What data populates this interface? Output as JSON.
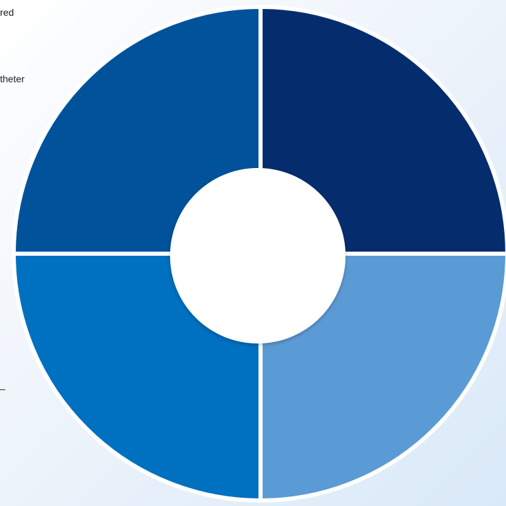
{
  "left_text_fragments": [
    "red",
    "theter",
    "–"
  ],
  "quadrants": [
    {
      "label": "",
      "color": "#052D6E"
    },
    {
      "label": "",
      "color": "#5B9BD5"
    },
    {
      "label": "",
      "color": "#0070C0"
    },
    {
      "label": "",
      "color": "#00529B"
    }
  ],
  "center_circle": {
    "label": "",
    "color": "#FFFFFF"
  },
  "background": {
    "top_left": "#FFFFFF",
    "bottom_right": "#D9E9F8"
  }
}
